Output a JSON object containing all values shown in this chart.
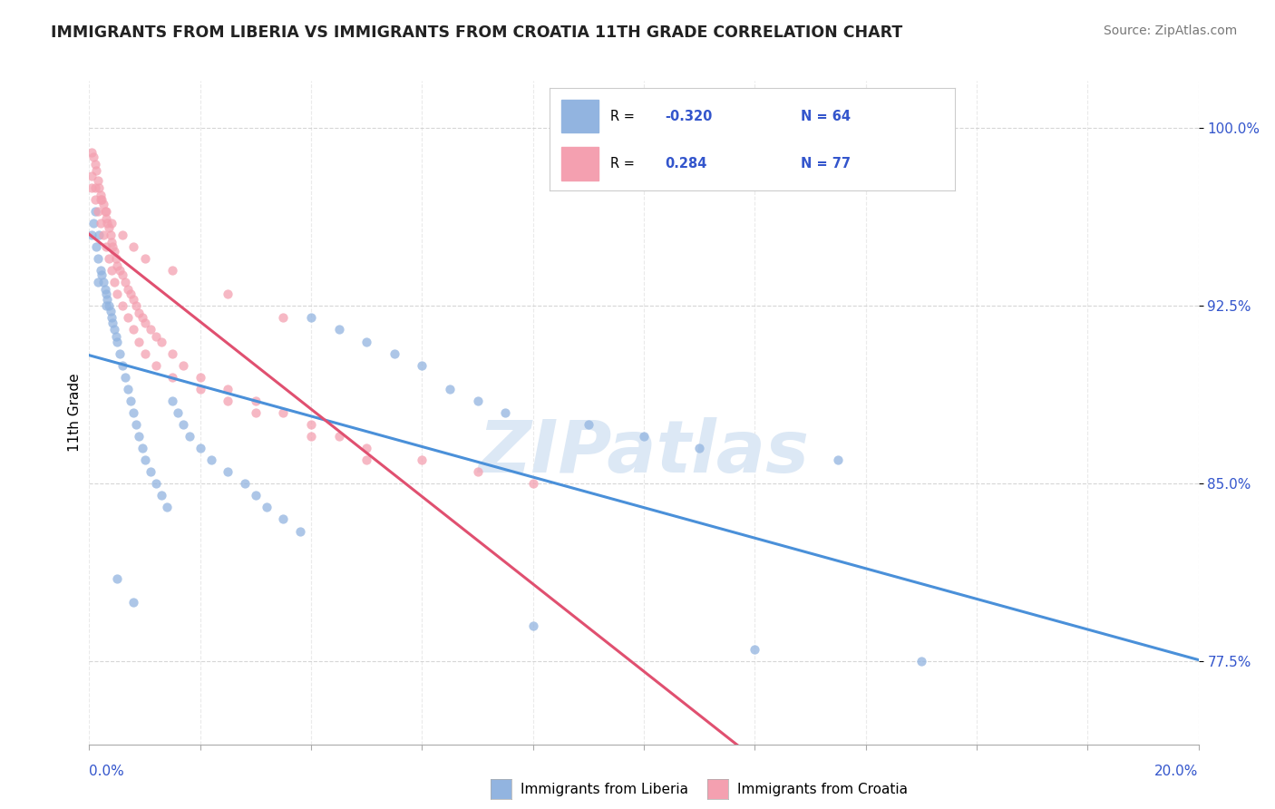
{
  "title": "IMMIGRANTS FROM LIBERIA VS IMMIGRANTS FROM CROATIA 11TH GRADE CORRELATION CHART",
  "source": "Source: ZipAtlas.com",
  "ylabel": "11th Grade",
  "y_ticks": [
    77.5,
    85.0,
    92.5,
    100.0
  ],
  "y_tick_labels": [
    "77.5%",
    "85.0%",
    "92.5%",
    "100.0%"
  ],
  "xlim": [
    0.0,
    20.0
  ],
  "ylim": [
    74.0,
    102.0
  ],
  "liberia_R": -0.32,
  "liberia_N": 64,
  "croatia_R": 0.284,
  "croatia_N": 77,
  "liberia_color": "#92b4e0",
  "croatia_color": "#f4a0b0",
  "liberia_line_color": "#4a90d9",
  "croatia_line_color": "#e05070",
  "watermark_color": "#dce8f5",
  "liberia_x": [
    0.05,
    0.08,
    0.1,
    0.12,
    0.15,
    0.18,
    0.2,
    0.22,
    0.25,
    0.28,
    0.3,
    0.32,
    0.35,
    0.38,
    0.4,
    0.42,
    0.45,
    0.48,
    0.5,
    0.55,
    0.6,
    0.65,
    0.7,
    0.75,
    0.8,
    0.85,
    0.9,
    0.95,
    1.0,
    1.1,
    1.2,
    1.3,
    1.4,
    1.5,
    1.6,
    1.7,
    1.8,
    2.0,
    2.2,
    2.5,
    2.8,
    3.0,
    3.2,
    3.5,
    3.8,
    4.0,
    4.5,
    5.0,
    5.5,
    6.0,
    6.5,
    7.0,
    7.5,
    8.0,
    9.0,
    10.0,
    11.0,
    12.0,
    13.5,
    15.0,
    0.15,
    0.3,
    0.5,
    0.8
  ],
  "liberia_y": [
    95.5,
    96.0,
    96.5,
    95.0,
    94.5,
    95.5,
    94.0,
    93.8,
    93.5,
    93.2,
    93.0,
    92.8,
    92.5,
    92.3,
    92.0,
    91.8,
    91.5,
    91.2,
    91.0,
    90.5,
    90.0,
    89.5,
    89.0,
    88.5,
    88.0,
    87.5,
    87.0,
    86.5,
    86.0,
    85.5,
    85.0,
    84.5,
    84.0,
    88.5,
    88.0,
    87.5,
    87.0,
    86.5,
    86.0,
    85.5,
    85.0,
    84.5,
    84.0,
    83.5,
    83.0,
    92.0,
    91.5,
    91.0,
    90.5,
    90.0,
    89.0,
    88.5,
    88.0,
    79.0,
    87.5,
    87.0,
    86.5,
    78.0,
    86.0,
    77.5,
    93.5,
    92.5,
    81.0,
    80.0
  ],
  "croatia_x": [
    0.05,
    0.08,
    0.1,
    0.12,
    0.15,
    0.18,
    0.2,
    0.22,
    0.25,
    0.28,
    0.3,
    0.32,
    0.35,
    0.38,
    0.4,
    0.42,
    0.45,
    0.48,
    0.5,
    0.55,
    0.6,
    0.65,
    0.7,
    0.75,
    0.8,
    0.85,
    0.9,
    0.95,
    1.0,
    1.1,
    1.2,
    1.3,
    1.5,
    1.7,
    2.0,
    2.5,
    3.0,
    3.5,
    4.0,
    4.5,
    5.0,
    6.0,
    7.0,
    8.0,
    0.05,
    0.1,
    0.15,
    0.2,
    0.25,
    0.3,
    0.35,
    0.4,
    0.45,
    0.5,
    0.6,
    0.7,
    0.8,
    0.9,
    1.0,
    1.2,
    1.5,
    2.0,
    2.5,
    3.0,
    4.0,
    5.0,
    0.05,
    0.1,
    0.2,
    0.3,
    0.4,
    0.6,
    0.8,
    1.0,
    1.5,
    2.5,
    3.5
  ],
  "croatia_y": [
    99.0,
    98.8,
    98.5,
    98.2,
    97.8,
    97.5,
    97.2,
    97.0,
    96.8,
    96.5,
    96.2,
    96.0,
    95.8,
    95.5,
    95.2,
    95.0,
    94.8,
    94.5,
    94.2,
    94.0,
    93.8,
    93.5,
    93.2,
    93.0,
    92.8,
    92.5,
    92.2,
    92.0,
    91.8,
    91.5,
    91.2,
    91.0,
    90.5,
    90.0,
    89.5,
    89.0,
    88.5,
    88.0,
    87.5,
    87.0,
    86.5,
    86.0,
    85.5,
    85.0,
    97.5,
    97.0,
    96.5,
    96.0,
    95.5,
    95.0,
    94.5,
    94.0,
    93.5,
    93.0,
    92.5,
    92.0,
    91.5,
    91.0,
    90.5,
    90.0,
    89.5,
    89.0,
    88.5,
    88.0,
    87.0,
    86.0,
    98.0,
    97.5,
    97.0,
    96.5,
    96.0,
    95.5,
    95.0,
    94.5,
    94.0,
    93.0,
    92.0
  ]
}
